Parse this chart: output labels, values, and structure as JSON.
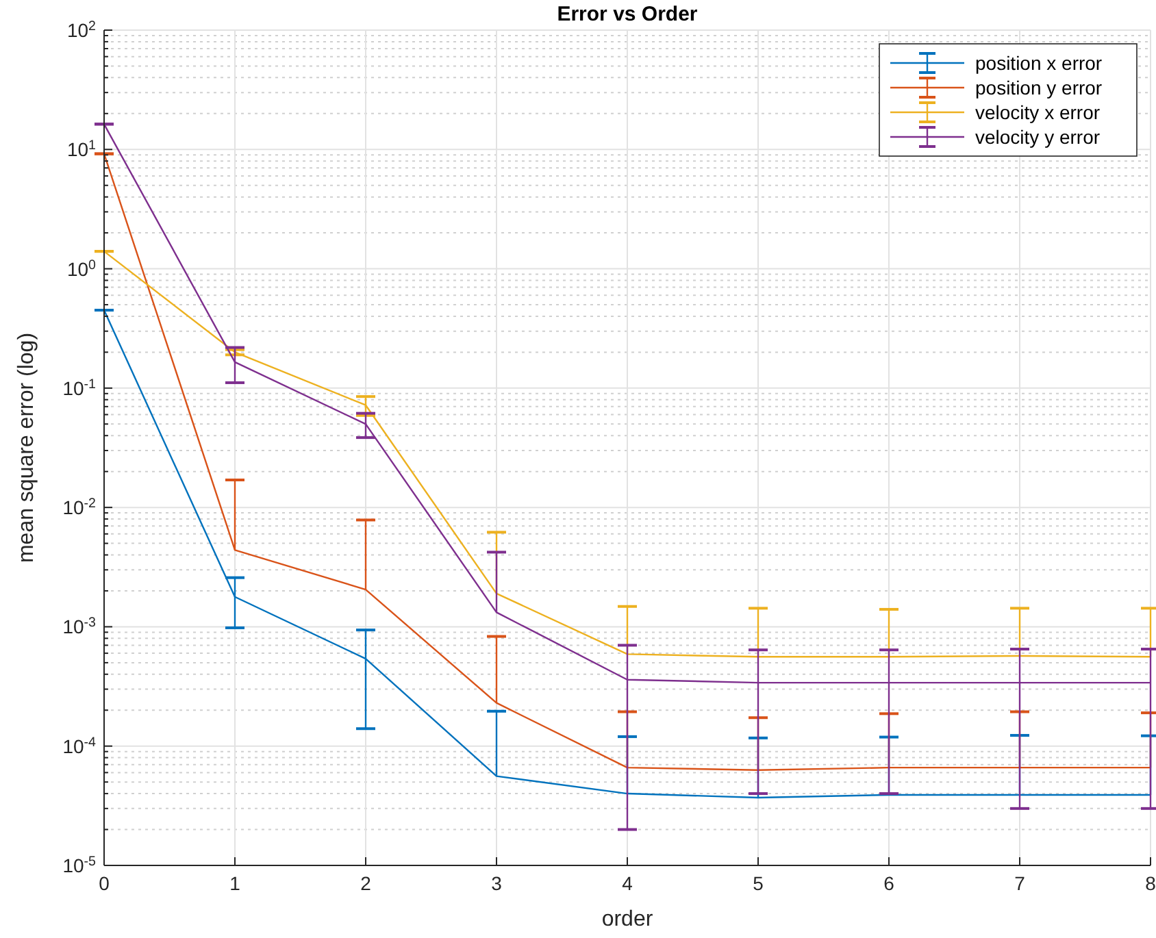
{
  "chart_data": {
    "type": "line",
    "title": "Error vs Order",
    "xlabel": "order",
    "ylabel": "mean square error (log)",
    "log": "y",
    "grid": true,
    "legend": "top right",
    "marker": "none",
    "line_style": "solid",
    "x": [
      0,
      1,
      2,
      3,
      4,
      5,
      6,
      7,
      8
    ],
    "xlim": [
      0,
      8
    ],
    "xticks": [
      0,
      1,
      2,
      3,
      4,
      5,
      6,
      7,
      8
    ],
    "ylim": [
      1e-05,
      100
    ],
    "yticks": [
      {
        "value": 1e-05,
        "label": "10$^{-5}$"
      },
      {
        "value": 2e-05,
        "label": null
      },
      {
        "value": 3e-05,
        "label": null
      },
      {
        "value": 4e-05,
        "label": null
      },
      {
        "value": 5e-05,
        "label": null
      },
      {
        "value": 6e-05,
        "label": null
      },
      {
        "value": 7e-05,
        "label": null
      },
      {
        "value": 8e-05,
        "label": null
      },
      {
        "value": 9e-05,
        "label": null
      },
      {
        "value": 0.0001,
        "label": "10$^{-4}$"
      },
      {
        "value": 0.0002,
        "label": null
      },
      {
        "value": 0.0003,
        "label": null
      },
      {
        "value": 0.0004,
        "label": null
      },
      {
        "value": 0.0005,
        "label": null
      },
      {
        "value": 0.0006,
        "label": null
      },
      {
        "value": 0.0007,
        "label": null
      },
      {
        "value": 0.0008,
        "label": null
      },
      {
        "value": 0.0009,
        "label": null
      },
      {
        "value": 0.001,
        "label": "10$^{-3}$"
      },
      {
        "value": 0.002,
        "label": null
      },
      {
        "value": 0.003,
        "label": null
      },
      {
        "value": 0.004,
        "label": null
      },
      {
        "value": 0.005,
        "label": null
      },
      {
        "value": 0.006,
        "label": null
      },
      {
        "value": 0.007,
        "label": null
      },
      {
        "value": 0.008,
        "label": null
      },
      {
        "value": 0.009,
        "label": null
      },
      {
        "value": 0.01,
        "label": "10$^{-2}$"
      },
      {
        "value": 0.02,
        "label": null
      },
      {
        "value": 0.03,
        "label": null
      },
      {
        "value": 0.04,
        "label": null
      },
      {
        "value": 0.05,
        "label": null
      },
      {
        "value": 0.06,
        "label": null
      },
      {
        "value": 0.07,
        "label": null
      },
      {
        "value": 0.08,
        "label": null
      },
      {
        "value": 0.09,
        "label": null
      },
      {
        "value": 0.1,
        "label": "10$^{-1}$"
      },
      {
        "value": 0.2,
        "label": null
      },
      {
        "value": 0.3,
        "label": null
      },
      {
        "value": 0.4,
        "label": null
      },
      {
        "value": 0.5,
        "label": null
      },
      {
        "value": 0.6,
        "label": null
      },
      {
        "value": 0.7,
        "label": null
      },
      {
        "value": 0.8,
        "label": null
      },
      {
        "value": 0.9,
        "label": null
      },
      {
        "value": 1,
        "label": "10$^{0}$"
      },
      {
        "value": 2,
        "label": null
      },
      {
        "value": 3,
        "label": null
      },
      {
        "value": 4,
        "label": null
      },
      {
        "value": 5,
        "label": null
      },
      {
        "value": 6,
        "label": null
      },
      {
        "value": 7,
        "label": null
      },
      {
        "value": 8,
        "label": null
      },
      {
        "value": 9,
        "label": null
      },
      {
        "value": 10,
        "label": "10$^{1}$"
      },
      {
        "value": 20,
        "label": null
      },
      {
        "value": 30,
        "label": null
      },
      {
        "value": 40,
        "label": null
      },
      {
        "value": 50,
        "label": null
      },
      {
        "value": 60,
        "label": null
      },
      {
        "value": 70,
        "label": null
      },
      {
        "value": 80,
        "label": null
      },
      {
        "value": 90,
        "label": null
      },
      {
        "value": 100,
        "label": "10$^{2}$"
      }
    ],
    "series": [
      {
        "name": "position x error",
        "color": "#0072bd",
        "values": [
          0.45,
          0.00178,
          0.00054,
          5.6e-05,
          4e-05,
          3.7e-05,
          3.9e-05,
          3.9e-05,
          3.9e-05
        ],
        "errors": [
          0,
          0.0008,
          0.0004,
          0.00014,
          8e-05,
          8e-05,
          8e-05,
          8.4e-05,
          8.3e-05
        ]
      },
      {
        "name": "position y error",
        "color": "#d95319",
        "values": [
          9.2,
          0.0044,
          0.00205,
          0.00023,
          6.6e-05,
          6.3e-05,
          6.6e-05,
          6.6e-05,
          6.6e-05
        ],
        "errors": [
          0,
          0.0126,
          0.0058,
          0.0006,
          0.000128,
          0.00011,
          0.000121,
          0.000128,
          0.000124
        ]
      },
      {
        "name": "velocity x error",
        "color": "#edb120",
        "values": [
          1.4,
          0.2,
          0.072,
          0.0019,
          0.00059,
          0.00056,
          0.00056,
          0.00057,
          0.00056
        ],
        "errors": [
          0,
          0.01,
          0.013,
          0.0043,
          0.00089,
          0.00087,
          0.00084,
          0.00086,
          0.00087
        ]
      },
      {
        "name": "velocity y error",
        "color": "#7e2f8e",
        "values": [
          16.3,
          0.165,
          0.05,
          0.00132,
          0.00036,
          0.00034,
          0.00034,
          0.00034,
          0.00034
        ],
        "errors": [
          0,
          0.054,
          0.0115,
          0.0029,
          0.00034,
          0.0003,
          0.0003,
          0.00031,
          0.00031
        ]
      }
    ]
  }
}
